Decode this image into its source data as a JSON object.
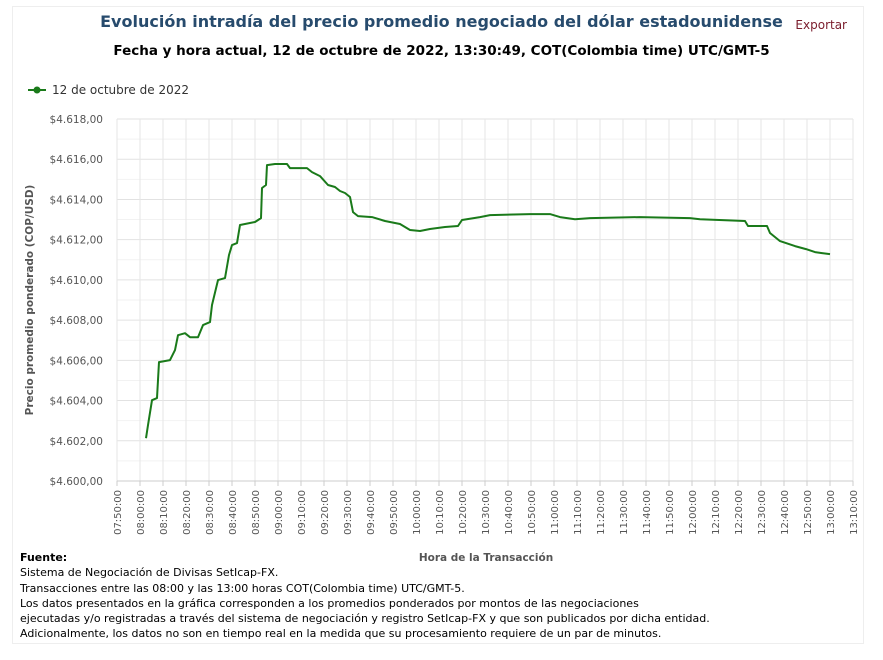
{
  "header": {
    "title": "Evolución intradía del precio promedio negociado del dólar estadounidense",
    "subtitle": "Fecha y hora actual, 12 de octubre de 2022, 13:30:49, COT(Colombia time) UTC/GMT-5",
    "export_label": "Exportar"
  },
  "footer": {
    "label": "Fuente:",
    "lines": [
      "Sistema de Negociación de Divisas SetIcap-FX.",
      "Transacciones entre las 08:00 y las 13:00 horas COT(Colombia time) UTC/GMT-5.",
      "Los datos presentados en la gráfica corresponden a los promedios ponderados por montos de las negociaciones",
      "ejecutadas y/o registradas a través del sistema de negociación y registro SetIcap-FX y que son publicados por dicha entidad.",
      "Adicionalmente, los datos no son en tiempo real en la medida que su procesamiento requiere de un par de minutos."
    ]
  },
  "chart_data": {
    "type": "line",
    "title": "Evolución intradía del precio promedio negociado del dólar estadounidense",
    "xlabel": "Hora de la Transacción",
    "ylabel": "Precio promedio ponderado (COP/USD)",
    "xlim": [
      "07:50:00",
      "13:10:00"
    ],
    "ylim": [
      4600,
      4618
    ],
    "grid": true,
    "legend": "top-left",
    "color": "#1a7a1a",
    "yticks": [
      "$4.600,00",
      "$4.602,00",
      "$4.604,00",
      "$4.606,00",
      "$4.608,00",
      "$4.610,00",
      "$4.612,00",
      "$4.614,00",
      "$4.616,00",
      "$4.618,00"
    ],
    "xticks": [
      "07:50:00",
      "08:00:00",
      "08:10:00",
      "08:20:00",
      "08:30:00",
      "08:40:00",
      "08:50:00",
      "09:00:00",
      "09:10:00",
      "09:20:00",
      "09:30:00",
      "09:40:00",
      "09:50:00",
      "10:00:00",
      "10:10:00",
      "10:20:00",
      "10:30:00",
      "10:40:00",
      "10:50:00",
      "11:00:00",
      "11:10:00",
      "11:20:00",
      "11:30:00",
      "11:40:00",
      "11:50:00",
      "12:00:00",
      "12:10:00",
      "12:20:00",
      "12:30:00",
      "12:40:00",
      "12:50:00",
      "13:00:00",
      "13:10:00"
    ],
    "series": [
      {
        "name": "12 de octubre de 2022",
        "x": [
          "08:02:37",
          "08:03:29",
          "08:05:13",
          "08:07:23",
          "08:08:16",
          "08:13:02",
          "08:15:13",
          "08:16:31",
          "08:19:34",
          "08:21:44",
          "08:25:13",
          "08:27:23",
          "08:30:26",
          "08:31:18",
          "08:33:55",
          "08:36:57",
          "08:38:42",
          "08:40:00",
          "08:42:10",
          "08:43:29",
          "08:50:00",
          "08:52:37",
          "08:53:03",
          "08:54:47",
          "08:55:13",
          "08:58:42",
          "09:03:55",
          "09:05:13",
          "09:12:37",
          "09:14:47",
          "09:18:16",
          "09:21:44",
          "09:24:47",
          "09:26:57",
          "09:29:08",
          "09:31:18",
          "09:32:37",
          "09:34:47",
          "09:40:52",
          "09:46:31",
          "09:53:02",
          "09:57:23",
          "10:01:44",
          "10:06:05",
          "10:12:37",
          "10:18:16",
          "10:20:00",
          "10:27:50",
          "10:32:10",
          "10:49:34",
          "10:58:16",
          "11:02:37",
          "11:09:08",
          "11:15:39",
          "11:37:23",
          "11:59:08",
          "12:03:29",
          "12:23:02",
          "12:24:21",
          "12:32:37",
          "12:33:55",
          "12:38:16",
          "12:44:47",
          "12:49:34",
          "12:53:29",
          "12:56:31",
          "13:00:00"
        ],
        "y": [
          4602.13,
          4602.78,
          4604.02,
          4604.12,
          4605.91,
          4606.01,
          4606.51,
          4607.25,
          4607.35,
          4607.15,
          4607.15,
          4607.75,
          4607.9,
          4608.75,
          4609.99,
          4610.09,
          4611.24,
          4611.73,
          4611.83,
          4612.73,
          4612.88,
          4613.07,
          4614.57,
          4614.72,
          4615.71,
          4615.76,
          4615.76,
          4615.56,
          4615.56,
          4615.36,
          4615.16,
          4614.72,
          4614.62,
          4614.42,
          4614.32,
          4614.12,
          4613.37,
          4613.17,
          4613.12,
          4612.93,
          4612.78,
          4612.48,
          4612.43,
          4612.53,
          4612.63,
          4612.68,
          4612.98,
          4613.12,
          4613.22,
          4613.27,
          4613.27,
          4613.12,
          4613.02,
          4613.07,
          4613.12,
          4613.07,
          4613.02,
          4612.93,
          4612.68,
          4612.68,
          4612.33,
          4611.93,
          4611.68,
          4611.53,
          4611.38,
          4611.33,
          4611.28
        ]
      }
    ]
  }
}
